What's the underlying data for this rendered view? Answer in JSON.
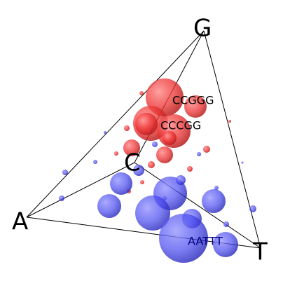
{
  "vertices": [
    {
      "id": "A",
      "label": "A"
    },
    {
      "id": "G",
      "label": "G"
    },
    {
      "id": "C",
      "label": "C"
    },
    {
      "id": "T",
      "label": "T"
    }
  ],
  "edges": [
    [
      "A",
      "G"
    ],
    [
      "A",
      "C"
    ],
    [
      "A",
      "T"
    ],
    [
      "G",
      "C"
    ],
    [
      "G",
      "T"
    ],
    [
      "C",
      "T"
    ]
  ],
  "colors": {
    "red": "#ff2a2a",
    "blue": "#3a3ae6",
    "edge": "#000000",
    "label_dark": "#000000",
    "label_navy": "#000080"
  },
  "sequence_labels": [
    {
      "text": "CCGGG",
      "color": "label_dark"
    },
    {
      "text": "CCCGG",
      "color": "label_dark"
    },
    {
      "text": "AATTT",
      "color": "label_navy"
    }
  ]
}
